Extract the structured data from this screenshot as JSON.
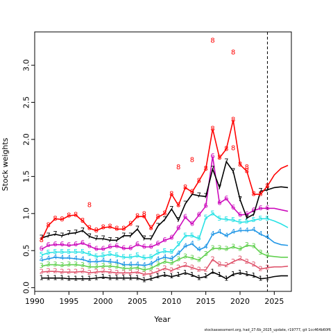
{
  "chart_data": {
    "type": "line",
    "xlabel": "Year",
    "ylabel": "Stock weights",
    "xlim": [
      1990,
      2027.5
    ],
    "ylim": [
      -0.05,
      3.45
    ],
    "xticks": [
      1990,
      1995,
      2000,
      2005,
      2010,
      2015,
      2020,
      2025
    ],
    "yticks": [
      0.0,
      0.5,
      1.0,
      1.5,
      2.0,
      2.5,
      3.0
    ],
    "ytick_labels": [
      "0.0",
      "0.5",
      "1.0",
      "1.5",
      "2.0",
      "2.5",
      "3.0"
    ],
    "vline_x": 2024,
    "footer": "stockassessment.org, had_27.6b_2025_update, r19777, git 1cc464b60f6",
    "series": [
      {
        "label": "1",
        "color": "#000000",
        "x": [
          1991,
          1992,
          1993,
          1994,
          1995,
          1996,
          1997,
          1998,
          1999,
          2000,
          2001,
          2002,
          2003,
          2004,
          2005,
          2006,
          2007,
          2008,
          2009,
          2010,
          2011,
          2012,
          2013,
          2014,
          2015,
          2016,
          2017,
          2018,
          2019,
          2020,
          2021,
          2022,
          2023,
          2024
        ],
        "y": [
          0.13,
          0.13,
          0.13,
          0.13,
          0.12,
          0.12,
          0.12,
          0.12,
          0.13,
          0.14,
          0.13,
          0.13,
          0.13,
          0.13,
          0.13,
          0.1,
          0.12,
          0.15,
          0.17,
          0.15,
          0.17,
          0.2,
          0.17,
          0.13,
          0.15,
          0.21,
          0.17,
          0.12,
          0.18,
          0.2,
          0.18,
          0.16,
          0.12,
          0.13
        ],
        "proj": [
          0.15,
          0.16,
          0.16
        ],
        "outliers": []
      },
      {
        "label": "2",
        "color": "#DF536B",
        "x": [
          1991,
          1992,
          1993,
          1994,
          1995,
          1996,
          1997,
          1998,
          1999,
          2000,
          2001,
          2002,
          2003,
          2004,
          2005,
          2006,
          2007,
          2008,
          2009,
          2010,
          2011,
          2012,
          2013,
          2014,
          2015,
          2016,
          2017,
          2018,
          2019,
          2020,
          2021,
          2022,
          2023,
          2024
        ],
        "y": [
          0.21,
          0.22,
          0.22,
          0.21,
          0.21,
          0.21,
          0.22,
          0.2,
          0.21,
          0.22,
          0.21,
          0.2,
          0.2,
          0.2,
          0.21,
          0.18,
          0.19,
          0.22,
          0.26,
          0.23,
          0.27,
          0.3,
          0.27,
          0.24,
          0.24,
          0.38,
          0.31,
          0.3,
          0.35,
          0.39,
          0.35,
          0.31,
          0.25,
          0.27
        ],
        "proj": [
          0.28,
          0.28,
          0.29
        ],
        "outliers": []
      },
      {
        "label": "3",
        "color": "#61D04F",
        "x": [
          1991,
          1992,
          1993,
          1994,
          1995,
          1996,
          1997,
          1998,
          1999,
          2000,
          2001,
          2002,
          2003,
          2004,
          2005,
          2006,
          2007,
          2008,
          2009,
          2010,
          2011,
          2012,
          2013,
          2014,
          2015,
          2016,
          2017,
          2018,
          2019,
          2020,
          2021,
          2022,
          2023,
          2024
        ],
        "y": [
          0.29,
          0.31,
          0.31,
          0.3,
          0.31,
          0.31,
          0.3,
          0.28,
          0.28,
          0.29,
          0.29,
          0.28,
          0.26,
          0.26,
          0.27,
          0.24,
          0.26,
          0.31,
          0.35,
          0.33,
          0.38,
          0.42,
          0.4,
          0.37,
          0.45,
          0.53,
          0.53,
          0.52,
          0.55,
          0.52,
          0.57,
          0.56,
          0.47,
          0.43
        ],
        "proj": [
          0.42,
          0.41,
          0.41
        ],
        "outliers": []
      },
      {
        "label": "4",
        "color": "#2297E6",
        "x": [
          1991,
          1992,
          1993,
          1994,
          1995,
          1996,
          1997,
          1998,
          1999,
          2000,
          2001,
          2002,
          2003,
          2004,
          2005,
          2006,
          2007,
          2008,
          2009,
          2010,
          2011,
          2012,
          2013,
          2014,
          2015,
          2016,
          2017,
          2018,
          2019,
          2020,
          2021,
          2022,
          2023,
          2024
        ],
        "y": [
          0.37,
          0.39,
          0.41,
          0.4,
          0.4,
          0.39,
          0.38,
          0.35,
          0.35,
          0.36,
          0.35,
          0.34,
          0.31,
          0.31,
          0.31,
          0.3,
          0.32,
          0.38,
          0.41,
          0.39,
          0.46,
          0.56,
          0.59,
          0.51,
          0.55,
          0.72,
          0.75,
          0.7,
          0.75,
          0.77,
          0.77,
          0.78,
          0.72,
          0.68
        ],
        "proj": [
          0.61,
          0.58,
          0.57
        ],
        "outliers": []
      },
      {
        "label": "5",
        "color": "#28E2E5",
        "x": [
          1991,
          1992,
          1993,
          1994,
          1995,
          1996,
          1997,
          1998,
          1999,
          2000,
          2001,
          2002,
          2003,
          2004,
          2005,
          2006,
          2007,
          2008,
          2009,
          2010,
          2011,
          2012,
          2013,
          2014,
          2015,
          2016,
          2017,
          2018,
          2019,
          2020,
          2021,
          2022,
          2023,
          2024
        ],
        "y": [
          0.44,
          0.47,
          0.48,
          0.48,
          0.48,
          0.48,
          0.48,
          0.45,
          0.42,
          0.43,
          0.45,
          0.43,
          0.41,
          0.41,
          0.43,
          0.4,
          0.41,
          0.47,
          0.49,
          0.48,
          0.58,
          0.7,
          0.7,
          0.66,
          0.94,
          1.0,
          0.93,
          0.92,
          0.91,
          0.88,
          0.89,
          0.91,
          0.93,
          0.93
        ],
        "proj": [
          0.9,
          0.86,
          0.81
        ],
        "outliers": []
      },
      {
        "label": "6",
        "color": "#CD0BBC",
        "x": [
          1991,
          1992,
          1993,
          1994,
          1995,
          1996,
          1997,
          1998,
          1999,
          2000,
          2001,
          2002,
          2003,
          2004,
          2005,
          2006,
          2007,
          2008,
          2009,
          2010,
          2011,
          2012,
          2013,
          2014,
          2015,
          2016,
          2017,
          2018,
          2019,
          2020,
          2021,
          2022,
          2023,
          2024
        ],
        "y": [
          0.52,
          0.57,
          0.58,
          0.58,
          0.57,
          0.58,
          0.6,
          0.56,
          0.52,
          0.52,
          0.55,
          0.56,
          0.53,
          0.53,
          0.58,
          0.55,
          0.55,
          0.59,
          0.64,
          0.67,
          0.8,
          0.95,
          0.86,
          0.98,
          1.1,
          1.77,
          1.14,
          1.2,
          1.08,
          0.98,
          0.99,
          1.04,
          1.07,
          1.07
        ],
        "proj": [
          1.07,
          1.05,
          1.03
        ],
        "outliers": []
      },
      {
        "label": "7",
        "color": "#000000",
        "x": [
          1991,
          1992,
          1993,
          1994,
          1995,
          1996,
          1997,
          1998,
          1999,
          2000,
          2001,
          2002,
          2003,
          2004,
          2005,
          2006,
          2007,
          2008,
          2009,
          2010,
          2011,
          2012,
          2013,
          2014,
          2015,
          2016,
          2017,
          2018,
          2019,
          2020,
          2021,
          2022,
          2023,
          2024
        ],
        "y": [
          0.67,
          0.7,
          0.72,
          0.7,
          0.73,
          0.74,
          0.77,
          0.69,
          0.66,
          0.66,
          0.64,
          0.64,
          0.7,
          0.7,
          0.79,
          0.66,
          0.66,
          0.83,
          0.92,
          1.06,
          0.91,
          1.13,
          1.26,
          1.24,
          1.23,
          1.6,
          1.35,
          1.7,
          1.57,
          1.19,
          0.94,
          0.99,
          1.3,
          1.32
        ],
        "proj": [
          1.35,
          1.36,
          1.35
        ],
        "outliers": []
      },
      {
        "label": "8",
        "color": "#FF0000",
        "x": [
          1991,
          1992,
          1993,
          1994,
          1995,
          1996,
          1997,
          1998,
          1999,
          2000,
          2001,
          2002,
          2003,
          2004,
          2005,
          2006,
          2007,
          2008,
          2009,
          2010,
          2011,
          2012,
          2013,
          2014,
          2015,
          2016,
          2017,
          2018,
          2019,
          2020,
          2021,
          2022,
          2023,
          2024
        ],
        "y": [
          0.64,
          0.84,
          0.93,
          0.92,
          0.97,
          0.98,
          0.9,
          0.8,
          0.77,
          0.81,
          0.82,
          0.79,
          0.79,
          0.86,
          0.96,
          0.96,
          0.8,
          0.95,
          1.0,
          1.26,
          1.11,
          1.35,
          1.29,
          1.44,
          1.6,
          2.14,
          1.75,
          1.87,
          2.26,
          1.66,
          1.57,
          1.26,
          1.26,
          1.37
        ],
        "proj": [
          1.52,
          1.61,
          1.65
        ],
        "outliers": [
          {
            "x": 2016,
            "y": 3.33
          },
          {
            "x": 2019,
            "y": 3.17
          },
          {
            "x": 1998,
            "y": 1.11
          },
          {
            "x": 2006,
            "y": 0.99
          },
          {
            "x": 2011,
            "y": 1.62
          },
          {
            "x": 2013,
            "y": 1.72
          },
          {
            "x": 2021,
            "y": 1.62
          },
          {
            "x": 2019,
            "y": 1.88
          }
        ]
      }
    ]
  }
}
